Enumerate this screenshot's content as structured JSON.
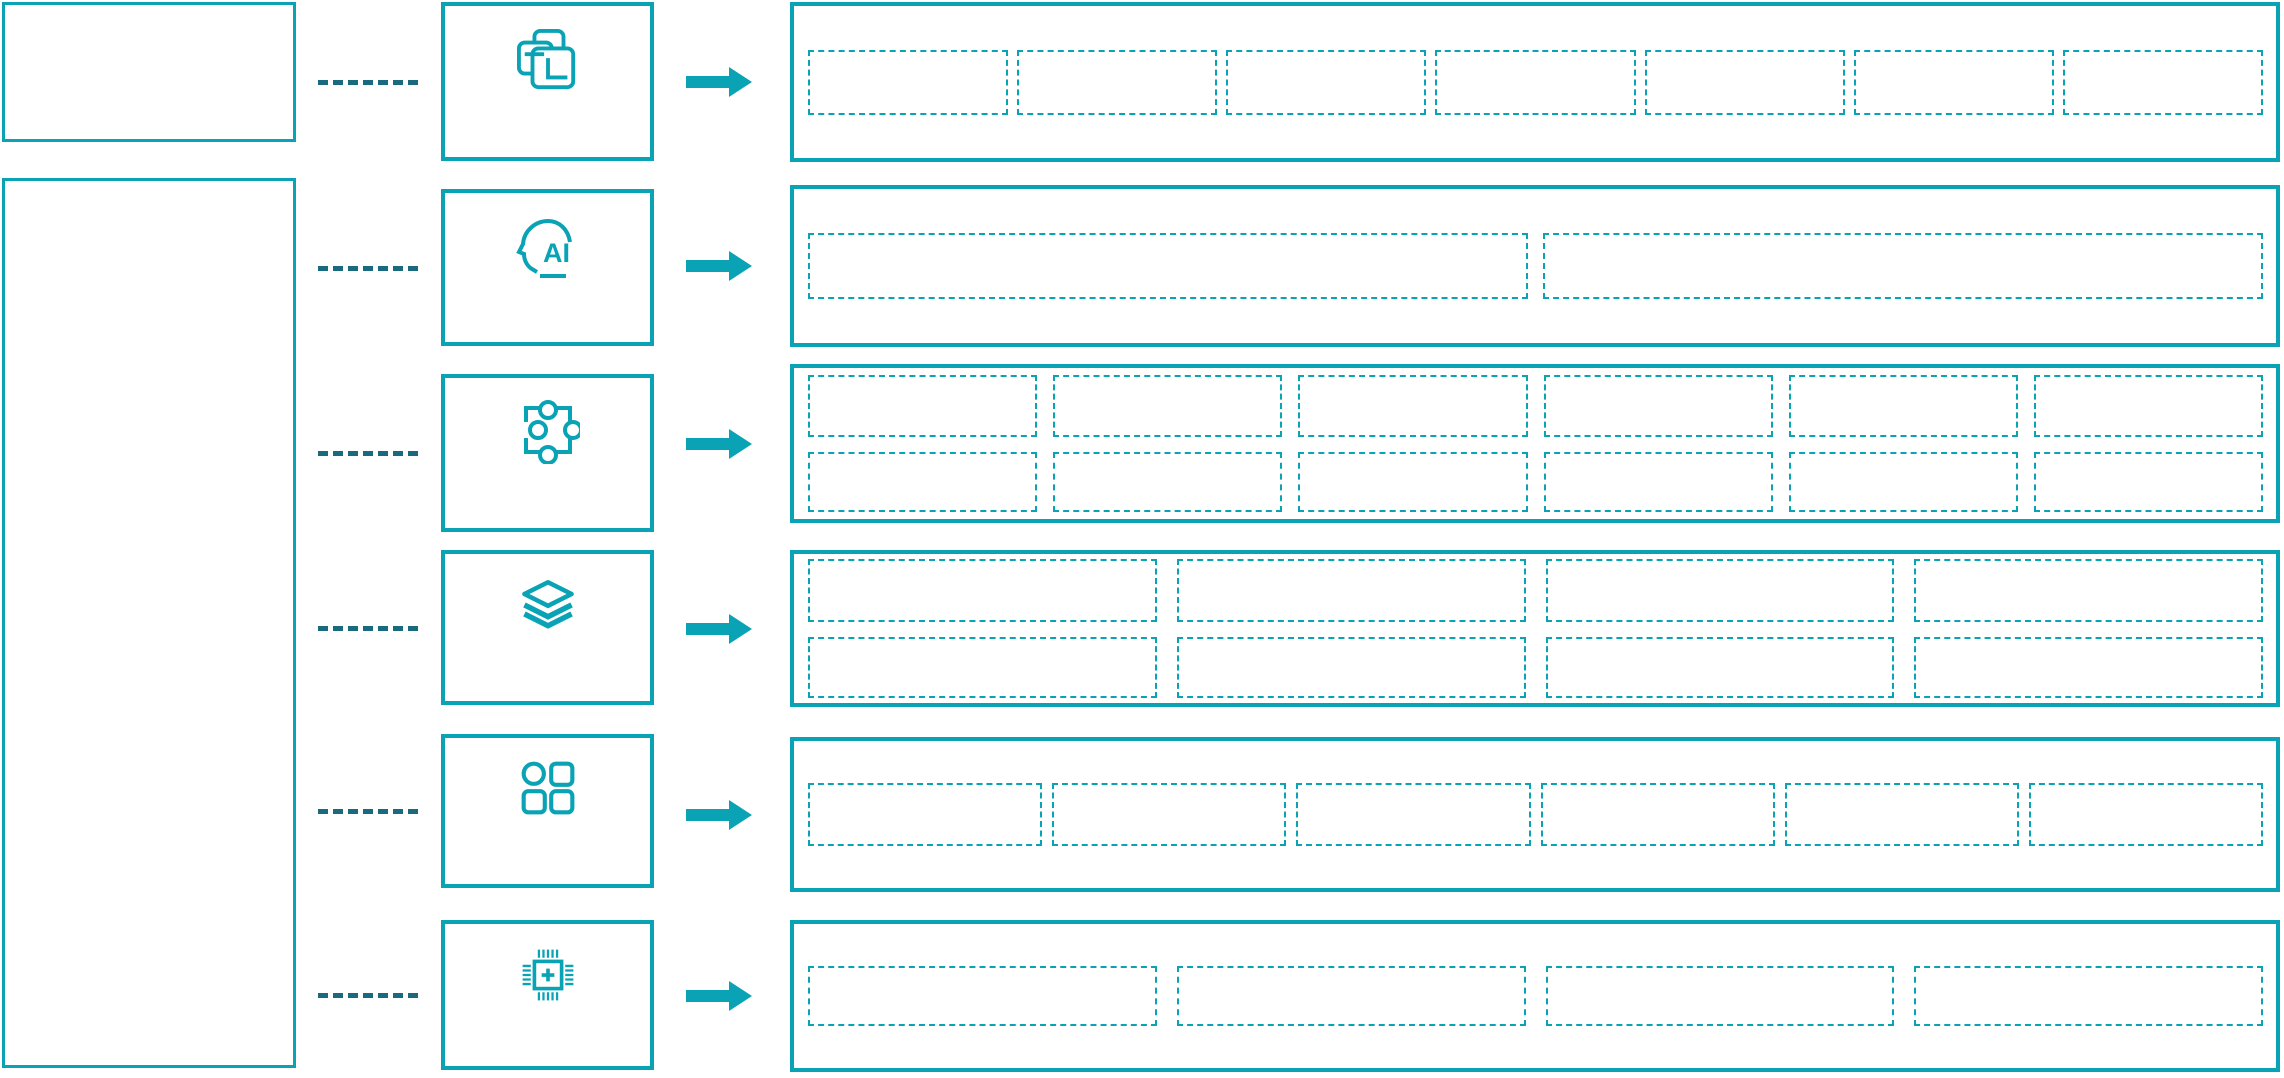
{
  "diagram": {
    "background": "#ffffff",
    "accent_color": "#0aa3b5",
    "connector_color": "#1a6a7d",
    "left_column": {
      "top_box_text": "",
      "main_box_text": ""
    },
    "rows": [
      {
        "icon": "overlapping-windows-icon",
        "icon_text": "",
        "placeholder_lines": [
          7
        ]
      },
      {
        "icon": "ai-head-icon",
        "icon_text": "AI",
        "placeholder_lines": [
          2
        ]
      },
      {
        "icon": "puzzle-piece-icon",
        "icon_text": "",
        "placeholder_lines": [
          6,
          6
        ]
      },
      {
        "icon": "layers-icon",
        "icon_text": "",
        "placeholder_lines": [
          4,
          4
        ]
      },
      {
        "icon": "apps-grid-icon",
        "icon_text": "",
        "placeholder_lines": [
          6
        ]
      },
      {
        "icon": "chip-plus-icon",
        "icon_text": "",
        "placeholder_lines": [
          4
        ]
      }
    ]
  }
}
